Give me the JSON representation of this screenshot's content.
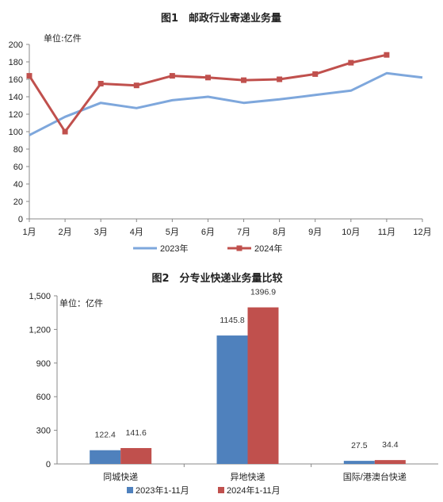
{
  "chart_data": [
    {
      "type": "line",
      "title": "图1　邮政行业寄递业务量",
      "unit_label": "单位:亿件",
      "categories": [
        "1月",
        "2月",
        "3月",
        "4月",
        "5月",
        "6月",
        "7月",
        "8月",
        "9月",
        "10月",
        "11月",
        "12月"
      ],
      "ylim": [
        0,
        200
      ],
      "yticks": [
        0,
        20,
        40,
        60,
        80,
        100,
        120,
        140,
        160,
        180,
        200
      ],
      "grid": false,
      "legend_position": "bottom",
      "series": [
        {
          "name": "2023年",
          "color": "#7ea7dc",
          "marker": "none",
          "values": [
            96,
            117,
            133,
            127,
            136,
            140,
            133,
            137,
            142,
            147,
            167,
            162
          ]
        },
        {
          "name": "2024年",
          "color": "#c0504d",
          "marker": "square",
          "values": [
            164,
            100,
            155,
            153,
            164,
            162,
            159,
            160,
            166,
            179,
            188,
            null
          ]
        }
      ]
    },
    {
      "type": "bar",
      "title": "图2　分专业快递业务量比较",
      "unit_label": "单位：亿件",
      "categories": [
        "同城快递",
        "异地快递",
        "国际/港澳台快递"
      ],
      "ylim": [
        0,
        1500
      ],
      "yticks": [
        0,
        300,
        600,
        900,
        1200,
        1500
      ],
      "ytick_labels": [
        "0",
        "300",
        "600",
        "900",
        "1,200",
        "1,500"
      ],
      "grid": false,
      "legend_position": "bottom",
      "series": [
        {
          "name": "2023年1-11月",
          "color": "#4f81bd",
          "values": [
            122.4,
            1145.8,
            27.5
          ],
          "labels": [
            "122.4",
            "1145.8",
            "27.5"
          ]
        },
        {
          "name": "2024年1-11月",
          "color": "#c0504d",
          "values": [
            141.6,
            1396.9,
            34.4
          ],
          "labels": [
            "141.6",
            "1396.9",
            "34.4"
          ]
        }
      ]
    }
  ]
}
